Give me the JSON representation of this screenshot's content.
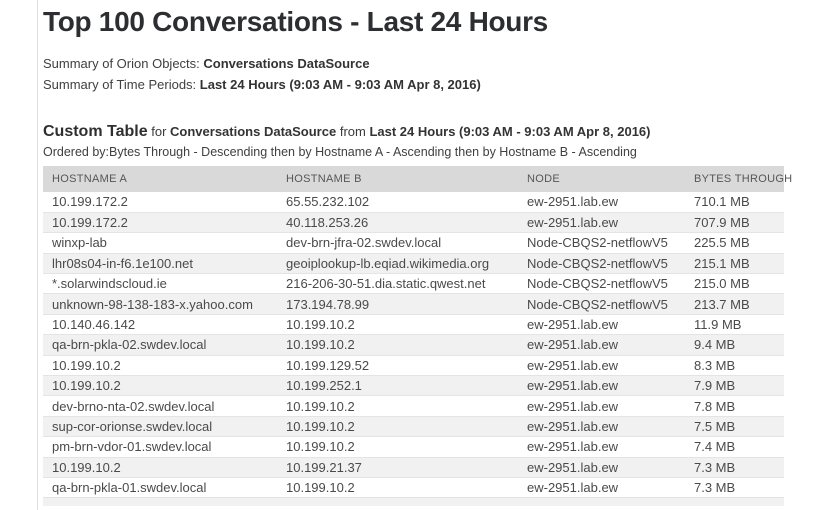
{
  "page": {
    "title": "Top 100 Conversations - Last 24 Hours",
    "summary_objects_label": "Summary of Orion Objects:",
    "summary_objects_value": "Conversations DataSource",
    "summary_time_label": "Summary of Time Periods:",
    "summary_time_value": "Last 24 Hours (9:03 AM - 9:03 AM Apr 8, 2016)"
  },
  "custom_table": {
    "heading_title": "Custom Table",
    "heading_for_word": "for",
    "heading_datasource": "Conversations DataSource",
    "heading_from_word": "from",
    "heading_period": "Last 24 Hours (9:03 AM - 9:03 AM Apr 8, 2016)",
    "ordered_by": "Ordered by:Bytes Through - Descending then by Hostname A - Ascending then by Hostname B - Ascending",
    "columns": [
      "HOSTNAME A",
      "HOSTNAME B",
      "NODE",
      "BYTES THROUGH"
    ],
    "rows": [
      [
        "10.199.172.2",
        "65.55.232.102",
        "ew-2951.lab.ew",
        "710.1 MB"
      ],
      [
        "10.199.172.2",
        "40.118.253.26",
        "ew-2951.lab.ew",
        "707.9 MB"
      ],
      [
        "winxp-lab",
        "dev-brn-jfra-02.swdev.local",
        "Node-CBQS2-netflowV5",
        "225.5 MB"
      ],
      [
        "lhr08s04-in-f6.1e100.net",
        "geoiplookup-lb.eqiad.wikimedia.org",
        "Node-CBQS2-netflowV5",
        "215.1 MB"
      ],
      [
        "*.solarwindscloud.ie",
        "216-206-30-51.dia.static.qwest.net",
        "Node-CBQS2-netflowV5",
        "215.0 MB"
      ],
      [
        "unknown-98-138-183-x.yahoo.com",
        "173.194.78.99",
        "Node-CBQS2-netflowV5",
        "213.7 MB"
      ],
      [
        "10.140.46.142",
        "10.199.10.2",
        "ew-2951.lab.ew",
        "11.9 MB"
      ],
      [
        "qa-brn-pkla-02.swdev.local",
        "10.199.10.2",
        "ew-2951.lab.ew",
        "9.4 MB"
      ],
      [
        "10.199.10.2",
        "10.199.129.52",
        "ew-2951.lab.ew",
        "8.3 MB"
      ],
      [
        "10.199.10.2",
        "10.199.252.1",
        "ew-2951.lab.ew",
        "7.9 MB"
      ],
      [
        "dev-brno-nta-02.swdev.local",
        "10.199.10.2",
        "ew-2951.lab.ew",
        "7.8 MB"
      ],
      [
        "sup-cor-orionse.swdev.local",
        "10.199.10.2",
        "ew-2951.lab.ew",
        "7.5 MB"
      ],
      [
        "pm-brn-vdor-01.swdev.local",
        "10.199.10.2",
        "ew-2951.lab.ew",
        "7.4 MB"
      ],
      [
        "10.199.10.2",
        "10.199.21.37",
        "ew-2951.lab.ew",
        "7.3 MB"
      ],
      [
        "qa-brn-pkla-01.swdev.local",
        "10.199.10.2",
        "ew-2951.lab.ew",
        "7.3 MB"
      ]
    ]
  },
  "colors": {
    "table_header_bg": "#d9d9d9",
    "row_alt_bg": "#f1f1f2",
    "row_border": "#e4e4e4",
    "title_text": "#2d2e31",
    "body_text": "#404040"
  }
}
